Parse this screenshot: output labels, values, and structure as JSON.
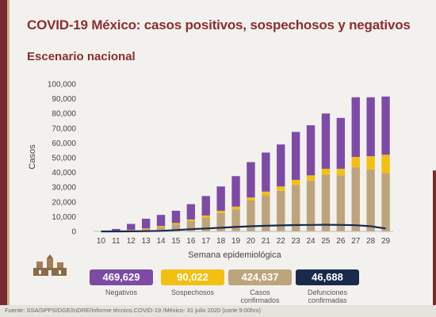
{
  "header": {
    "title": "COVID-19 México: casos positivos, sospechosos y negativos",
    "subtitle": "Escenario nacional"
  },
  "colors": {
    "negativos": "#7d4ba6",
    "sospechosos": "#f3c012",
    "confirmados": "#bda47c",
    "defunciones": "#1a2a4a",
    "brand": "#8b2e32"
  },
  "stats": [
    {
      "value": "469,629",
      "label": "Negativos",
      "color": "#7d4ba6"
    },
    {
      "value": "90,022",
      "label": "Sospechosos",
      "color": "#f3c012"
    },
    {
      "value": "424,637",
      "label": "Casos confirmados",
      "color": "#bda47c"
    },
    {
      "value": "46,688",
      "label": "Defunciones confirmadas",
      "color": "#1a2a4a"
    }
  ],
  "footer": {
    "source": "Fuente: SSA/SPPS/DGE/InDRE/Informe técnico.COVID-19 /México- 31 julio 2020 (corte 9:00hrs)"
  },
  "chart_data": {
    "type": "bar",
    "stacked": true,
    "xlabel": "Semana epidemiológica",
    "ylabel": "Casos",
    "ylim": [
      0,
      100000
    ],
    "yticks": [
      0,
      10000,
      20000,
      30000,
      40000,
      50000,
      60000,
      70000,
      80000,
      90000,
      100000
    ],
    "ytick_labels": [
      "0",
      "10,000",
      "20,000",
      "30,000",
      "40,000",
      "50,000",
      "60,000",
      "70,000",
      "80,000",
      "90,000",
      "100,000"
    ],
    "categories": [
      "10",
      "11",
      "12",
      "13",
      "14",
      "15",
      "16",
      "17",
      "18",
      "19",
      "20",
      "21",
      "22",
      "23",
      "24",
      "25",
      "26",
      "27",
      "28",
      "29"
    ],
    "series": [
      {
        "name": "Casos confirmados",
        "color": "#bda47c",
        "values": [
          0,
          100,
          800,
          1600,
          3000,
          4800,
          7000,
          9500,
          12500,
          15000,
          21000,
          24500,
          27500,
          31500,
          34500,
          38500,
          38000,
          43500,
          42000,
          39500
        ]
      },
      {
        "name": "Sospechosos",
        "color": "#f3c012",
        "values": [
          0,
          50,
          300,
          500,
          700,
          900,
          1100,
          1300,
          1500,
          1800,
          2000,
          2500,
          3000,
          3500,
          3500,
          4000,
          4500,
          7000,
          9000,
          12500
        ]
      },
      {
        "name": "Negativos",
        "color": "#7d4ba6",
        "values": [
          0,
          1500,
          4000,
          6500,
          7500,
          8300,
          10400,
          13200,
          16500,
          20700,
          24000,
          26500,
          28500,
          32500,
          34000,
          37500,
          34500,
          40500,
          40000,
          39500
        ]
      }
    ],
    "line": {
      "name": "Defunciones",
      "color": "#1a2a4a",
      "values": [
        0,
        10,
        40,
        150,
        400,
        900,
        1500,
        2000,
        2500,
        3000,
        3500,
        3800,
        4100,
        4300,
        4400,
        4500,
        4400,
        4200,
        3500,
        2000
      ]
    }
  }
}
